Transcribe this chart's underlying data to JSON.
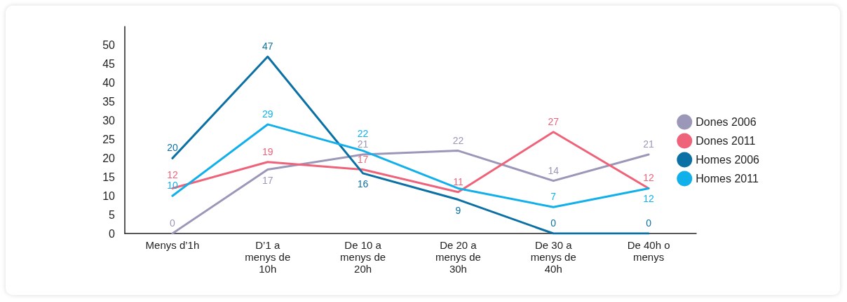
{
  "chart_data": {
    "type": "line",
    "categories": [
      "Menys d’1h",
      "D’1 a\nmenys de\n10h",
      "De 10 a\nmenys de\n20h",
      "De 20 a\nmenys de\n30h",
      "De 30 a\nmenys de\n40h",
      "De 40h o\nmenys"
    ],
    "series": [
      {
        "name": "Dones 2006",
        "color": "#9b97b8",
        "values": [
          0,
          17,
          21,
          22,
          14,
          21
        ],
        "value_labels": [
          "0",
          "17",
          "21",
          "22",
          "14",
          "21"
        ]
      },
      {
        "name": "Dones 2011",
        "color": "#ee6379",
        "values": [
          12,
          19,
          17,
          11,
          27,
          12
        ],
        "value_labels": [
          "12",
          "19",
          "17",
          "11",
          "27",
          "12"
        ]
      },
      {
        "name": "Homes 2006",
        "color": "#0b70a4",
        "values": [
          20,
          47,
          16,
          9,
          0,
          0
        ],
        "value_labels": [
          "20",
          "47",
          "16",
          "9",
          "0",
          "0"
        ]
      },
      {
        "name": "Homes 2011",
        "color": "#12b0ea",
        "values": [
          10,
          29,
          22,
          12,
          7,
          12
        ],
        "value_labels": [
          "10",
          "29",
          "22",
          null,
          "7",
          "12"
        ]
      }
    ],
    "ylim": [
      0,
      55
    ],
    "yticks": [
      0,
      5,
      10,
      15,
      20,
      25,
      30,
      35,
      40,
      45,
      50
    ],
    "grid": false,
    "legend": "right",
    "marker": "none",
    "line_style": "solid"
  }
}
